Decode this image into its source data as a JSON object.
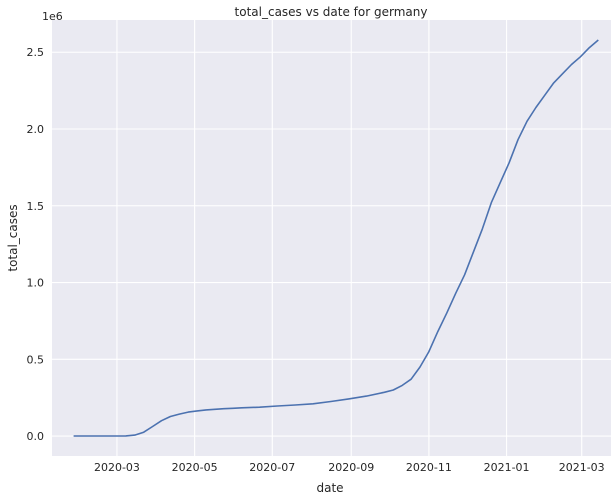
{
  "chart_data": {
    "type": "line",
    "title": "total_cases vs date   for germany",
    "xlabel": "date",
    "ylabel": "total_cases",
    "y_offset_label": "1e6",
    "background": "#eaeaf2",
    "grid": true,
    "grid_color": "#ffffff",
    "line_color": "#4c72b0",
    "xlim": [
      "2020-01-10",
      "2021-03-24"
    ],
    "ylim": [
      -0.13,
      2.71
    ],
    "x_ticks": [
      "2020-03-01",
      "2020-05-01",
      "2020-07-01",
      "2020-09-01",
      "2020-11-01",
      "2021-01-01",
      "2021-03-01"
    ],
    "x_tick_labels": [
      "2020-03",
      "2020-05",
      "2020-07",
      "2020-09",
      "2020-11",
      "2021-01",
      "2021-03"
    ],
    "y_ticks": [
      0,
      0.5,
      1.0,
      1.5,
      2.0,
      2.5
    ],
    "y_tick_labels": [
      "0.0",
      "0.5",
      "1.0",
      "1.5",
      "2.0",
      "2.5"
    ],
    "series": [
      {
        "x": [
          "2020-01-27",
          "2020-02-15",
          "2020-03-01",
          "2020-03-08",
          "2020-03-15",
          "2020-03-22",
          "2020-03-29",
          "2020-04-05",
          "2020-04-12",
          "2020-04-19",
          "2020-04-26",
          "2020-05-03",
          "2020-05-10",
          "2020-05-17",
          "2020-05-24",
          "2020-05-31",
          "2020-06-07",
          "2020-06-21",
          "2020-07-05",
          "2020-07-19",
          "2020-08-02",
          "2020-08-16",
          "2020-08-30",
          "2020-09-13",
          "2020-09-27",
          "2020-10-04",
          "2020-10-11",
          "2020-10-18",
          "2020-10-25",
          "2020-11-01",
          "2020-11-08",
          "2020-11-15",
          "2020-11-22",
          "2020-11-29",
          "2020-12-06",
          "2020-12-13",
          "2020-12-20",
          "2020-12-27",
          "2021-01-03",
          "2021-01-10",
          "2021-01-17",
          "2021-01-24",
          "2021-01-31",
          "2021-02-07",
          "2021-02-14",
          "2021-02-21",
          "2021-02-28",
          "2021-03-07",
          "2021-03-14"
        ],
        "y": [
          0.0,
          0.0,
          0.0001,
          0.001,
          0.006,
          0.025,
          0.062,
          0.1,
          0.127,
          0.143,
          0.156,
          0.164,
          0.17,
          0.174,
          0.178,
          0.181,
          0.184,
          0.188,
          0.196,
          0.202,
          0.21,
          0.225,
          0.242,
          0.26,
          0.285,
          0.3,
          0.33,
          0.37,
          0.45,
          0.55,
          0.68,
          0.8,
          0.93,
          1.05,
          1.2,
          1.35,
          1.52,
          1.65,
          1.78,
          1.93,
          2.05,
          2.14,
          2.22,
          2.3,
          2.36,
          2.42,
          2.47,
          2.53,
          2.58
        ]
      }
    ]
  }
}
